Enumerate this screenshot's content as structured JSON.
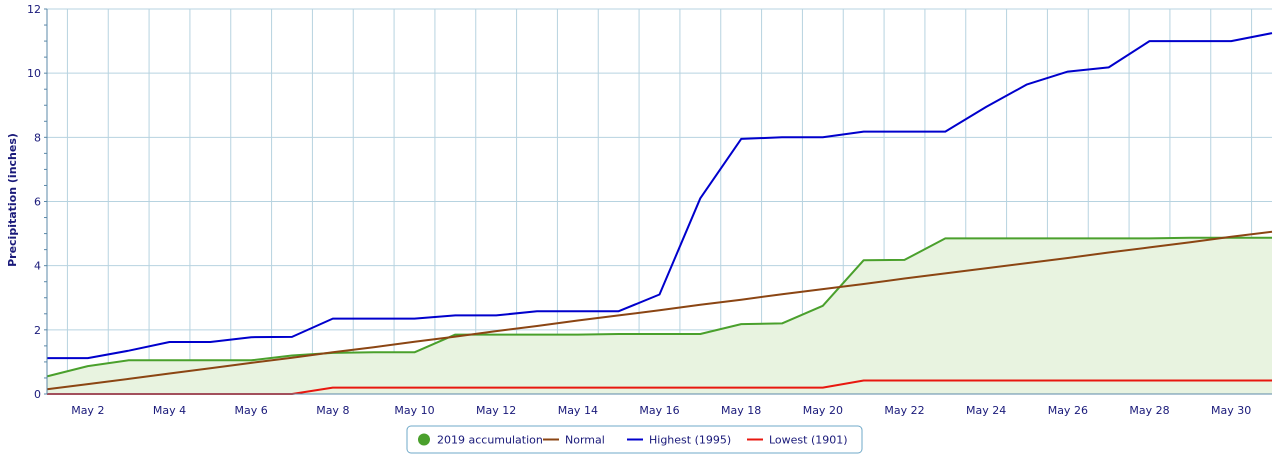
{
  "chart_data": {
    "type": "line",
    "title": "",
    "xlabel": "",
    "ylabel": "Precipitation (inches)",
    "ylim": [
      0,
      12
    ],
    "xlim": [
      1,
      31
    ],
    "yticks": [
      0,
      2,
      4,
      6,
      8,
      10,
      12
    ],
    "xticks": [
      {
        "day": 2,
        "label": "May 2"
      },
      {
        "day": 4,
        "label": "May 4"
      },
      {
        "day": 6,
        "label": "May 6"
      },
      {
        "day": 8,
        "label": "May 8"
      },
      {
        "day": 10,
        "label": "May 10"
      },
      {
        "day": 12,
        "label": "May 12"
      },
      {
        "day": 14,
        "label": "May 14"
      },
      {
        "day": 16,
        "label": "May 16"
      },
      {
        "day": 18,
        "label": "May 18"
      },
      {
        "day": 20,
        "label": "May 20"
      },
      {
        "day": 22,
        "label": "May 22"
      },
      {
        "day": 24,
        "label": "May 24"
      },
      {
        "day": 26,
        "label": "May 26"
      },
      {
        "day": 28,
        "label": "May 28"
      },
      {
        "day": 30,
        "label": "May 30"
      }
    ],
    "grid": true,
    "legend_position": "bottom-center",
    "x": [
      1,
      2,
      3,
      4,
      5,
      6,
      7,
      8,
      9,
      10,
      11,
      12,
      13,
      14,
      15,
      16,
      17,
      18,
      19,
      20,
      21,
      22,
      23,
      24,
      25,
      26,
      27,
      28,
      29,
      30,
      31
    ],
    "series": [
      {
        "name": "2019 accumulation",
        "style": "area",
        "color": "#4aa02c",
        "fill": "#e8f3e0",
        "values": [
          0.55,
          0.87,
          1.05,
          1.05,
          1.05,
          1.05,
          1.2,
          1.28,
          1.3,
          1.3,
          1.85,
          1.85,
          1.85,
          1.85,
          1.87,
          1.87,
          1.87,
          2.18,
          2.2,
          2.75,
          4.17,
          4.18,
          4.85,
          4.85,
          4.85,
          4.85,
          4.85,
          4.85,
          4.87,
          4.87,
          4.87
        ]
      },
      {
        "name": "Normal",
        "style": "line",
        "color": "#8b4513",
        "values": [
          0.15,
          0.31,
          0.47,
          0.64,
          0.8,
          0.97,
          1.13,
          1.3,
          1.46,
          1.63,
          1.79,
          1.96,
          2.12,
          2.29,
          2.45,
          2.61,
          2.78,
          2.94,
          3.11,
          3.27,
          3.43,
          3.6,
          3.76,
          3.92,
          4.08,
          4.24,
          4.41,
          4.57,
          4.73,
          4.9,
          5.06
        ]
      },
      {
        "name": "Highest (1995)",
        "style": "line",
        "color": "#0000cc",
        "values": [
          1.12,
          1.12,
          1.35,
          1.62,
          1.62,
          1.77,
          1.78,
          2.35,
          2.35,
          2.35,
          2.45,
          2.45,
          2.58,
          2.58,
          2.58,
          3.1,
          6.1,
          7.95,
          8.0,
          8.0,
          8.18,
          8.18,
          8.18,
          8.95,
          9.65,
          10.05,
          10.18,
          11.0,
          11.0,
          11.0,
          11.25
        ]
      },
      {
        "name": "Lowest (1901)",
        "style": "line",
        "color": "#e8170f",
        "values": [
          0,
          0,
          0,
          0,
          0,
          0,
          0,
          0.2,
          0.2,
          0.2,
          0.2,
          0.2,
          0.2,
          0.2,
          0.2,
          0.2,
          0.2,
          0.2,
          0.2,
          0.2,
          0.42,
          0.42,
          0.42,
          0.42,
          0.42,
          0.42,
          0.42,
          0.42,
          0.42,
          0.42,
          0.42
        ]
      }
    ]
  },
  "colors": {
    "grid": "#b7d3e0",
    "axis": "#5b88a8",
    "text": "#1a1a7a",
    "legend_border": "#6fa8c8"
  }
}
